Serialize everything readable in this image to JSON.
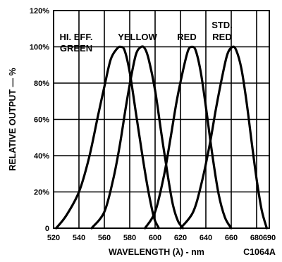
{
  "chart_data": {
    "type": "line",
    "title": "",
    "xlabel": "WAVELENGTH (λ) - nm",
    "ylabel": "RELATIVE OUTPUT — %",
    "figure_code": "C1064A",
    "xlim": [
      520,
      690
    ],
    "ylim": [
      0,
      120
    ],
    "x_ticks": [
      520,
      540,
      560,
      580,
      600,
      620,
      640,
      660,
      680,
      690
    ],
    "y_ticks": [
      0,
      20,
      40,
      60,
      80,
      100,
      120
    ],
    "y_tick_labels": [
      "0",
      "20%",
      "40%",
      "60%",
      "80%",
      "100%",
      "120%"
    ],
    "grid": true,
    "series": [
      {
        "name": "HI. EFF. GREEN",
        "label_lines": [
          "HI. EFF.",
          "GREEN"
        ],
        "x": [
          522,
          530,
          540,
          548,
          555,
          560,
          565,
          570,
          573,
          576,
          580,
          585,
          590,
          594,
          598,
          600,
          603
        ],
        "y": [
          0,
          7,
          20,
          39,
          62,
          78,
          93,
          99,
          100,
          98,
          86,
          63,
          40,
          23,
          9,
          4,
          0
        ]
      },
      {
        "name": "YELLOW",
        "label_lines": [
          "YELLOW"
        ],
        "x": [
          550,
          560,
          567,
          572,
          577,
          581,
          585,
          589,
          592,
          595,
          600,
          605,
          610,
          614,
          618,
          622
        ],
        "y": [
          0,
          9,
          27,
          45,
          67,
          83,
          96,
          100,
          99,
          93,
          76,
          52,
          29,
          13,
          4,
          0
        ]
      },
      {
        "name": "RED",
        "label_lines": [
          "RED"
        ],
        "x": [
          592,
          600,
          607,
          612,
          617,
          622,
          626,
          629,
          632,
          636,
          640,
          645,
          650,
          655,
          660
        ],
        "y": [
          0,
          9,
          29,
          49,
          70,
          87,
          98,
          100,
          98,
          86,
          67,
          41,
          19,
          6,
          0
        ]
      },
      {
        "name": "STD. RED",
        "label_lines": [
          "STD.",
          "RED"
        ],
        "x": [
          620,
          630,
          637,
          643,
          648,
          653,
          657,
          661,
          664,
          668,
          672,
          676,
          680,
          684,
          688
        ],
        "y": [
          0,
          9,
          26,
          46,
          66,
          84,
          96,
          100,
          98,
          88,
          70,
          48,
          27,
          10,
          0
        ]
      }
    ]
  }
}
